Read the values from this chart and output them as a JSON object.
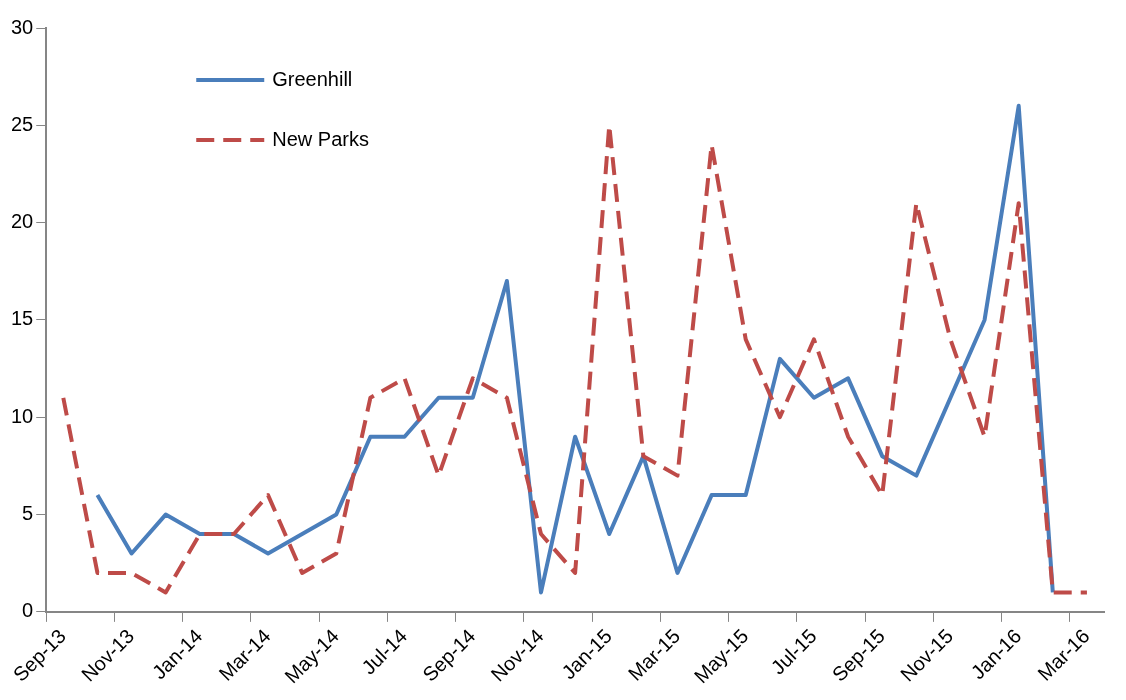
{
  "chart_data": {
    "type": "line",
    "categories": [
      "Sep-13",
      null,
      "Nov-13",
      null,
      "Jan-14",
      null,
      "Mar-14",
      null,
      "May-14",
      null,
      "Jul-14",
      null,
      "Sep-14",
      null,
      "Nov-14",
      null,
      "Jan-15",
      null,
      "Mar-15",
      null,
      "May-15",
      null,
      "Jul-15",
      null,
      "Sep-15",
      null,
      "Nov-15",
      null,
      "Jan-16",
      null,
      "Mar-16"
    ],
    "series": [
      {
        "name": "Greenhill",
        "color": "#4a7ebb",
        "line_style": "solid",
        "values": [
          null,
          6,
          3,
          5,
          4,
          4,
          3,
          4,
          5,
          9,
          9,
          11,
          11,
          17,
          1,
          9,
          4,
          8,
          2,
          6,
          6,
          13,
          11,
          12,
          8,
          7,
          11,
          15,
          26,
          1,
          null
        ]
      },
      {
        "name": "New Parks",
        "color": "#be4b48",
        "line_style": "dashed",
        "values": [
          11,
          2,
          2,
          1,
          4,
          4,
          6,
          2,
          3,
          11,
          12,
          7,
          12,
          11,
          4,
          2,
          25,
          8,
          7,
          24,
          14,
          10,
          14,
          9,
          6,
          21,
          14,
          9,
          21,
          1,
          1
        ]
      }
    ],
    "ylim": [
      0,
      30
    ],
    "yticks": [
      0,
      5,
      10,
      15,
      20,
      25,
      30
    ],
    "grid": false,
    "legend": "top left",
    "marker": "none"
  }
}
